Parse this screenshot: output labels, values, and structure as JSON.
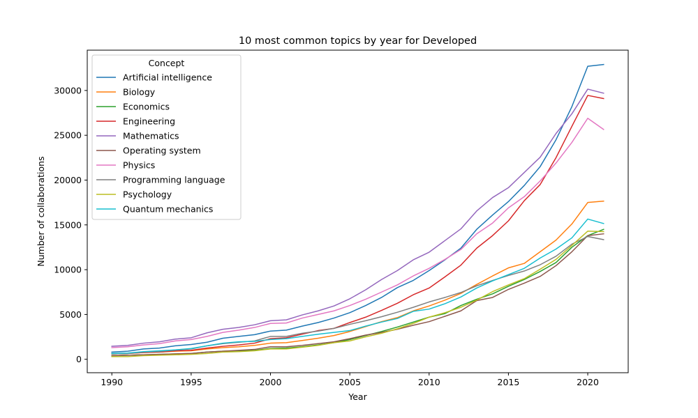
{
  "chart_data": {
    "type": "line",
    "title": "10 most common topics by year for Developed",
    "xlabel": "Year",
    "ylabel": "Number of collaborations",
    "xlim": [
      1988.45,
      2022.55
    ],
    "ylim": [
      -1500,
      34500
    ],
    "xticks": [
      1990,
      1995,
      2000,
      2005,
      2010,
      2015,
      2020
    ],
    "yticks": [
      0,
      5000,
      10000,
      15000,
      20000,
      25000,
      30000
    ],
    "grid": false,
    "legend": {
      "title": "Concept",
      "placement": "top-left"
    },
    "x": [
      1990,
      1991,
      1992,
      1993,
      1994,
      1995,
      1996,
      1997,
      1998,
      1999,
      2000,
      2001,
      2002,
      2003,
      2004,
      2005,
      2006,
      2007,
      2008,
      2009,
      2010,
      2011,
      2012,
      2013,
      2014,
      2015,
      2016,
      2017,
      2018,
      2019,
      2020,
      2021
    ],
    "series": [
      {
        "name": "Artificial intelligence",
        "color": "#1f77b4",
        "values": [
          800,
          900,
          1150,
          1250,
          1500,
          1650,
          1900,
          2350,
          2550,
          2750,
          3150,
          3250,
          3700,
          4100,
          4600,
          5200,
          6000,
          6900,
          8000,
          8800,
          9900,
          11100,
          12400,
          14500,
          16100,
          17600,
          19400,
          21500,
          24500,
          28200,
          32700,
          32900
        ]
      },
      {
        "name": "Biology",
        "color": "#ff7f0e",
        "values": [
          600,
          650,
          750,
          800,
          900,
          950,
          1150,
          1300,
          1400,
          1550,
          1800,
          1850,
          2100,
          2350,
          2650,
          3100,
          3650,
          4200,
          4650,
          5400,
          5950,
          6600,
          7350,
          8350,
          9300,
          10200,
          10700,
          12000,
          13300,
          15100,
          17500,
          17650
        ]
      },
      {
        "name": "Economics",
        "color": "#2ca02c",
        "values": [
          400,
          450,
          500,
          550,
          600,
          650,
          800,
          900,
          950,
          1000,
          1200,
          1250,
          1400,
          1600,
          1850,
          2200,
          2650,
          3100,
          3600,
          4150,
          4700,
          5100,
          6000,
          6700,
          7300,
          8150,
          8900,
          9800,
          10800,
          12500,
          13800,
          14500
        ]
      },
      {
        "name": "Engineering",
        "color": "#d62728",
        "values": [
          600,
          650,
          750,
          800,
          950,
          1000,
          1250,
          1450,
          1600,
          1800,
          2300,
          2400,
          2800,
          3200,
          3450,
          4100,
          4700,
          5450,
          6250,
          7200,
          7950,
          9200,
          10500,
          12400,
          13800,
          15450,
          17700,
          19500,
          22500,
          26000,
          29450,
          29100
        ]
      },
      {
        "name": "Mathematics",
        "color": "#9467bd",
        "values": [
          1450,
          1550,
          1800,
          1950,
          2250,
          2400,
          2950,
          3350,
          3550,
          3850,
          4300,
          4400,
          4950,
          5400,
          5950,
          6750,
          7750,
          8900,
          9900,
          11100,
          11950,
          13250,
          14550,
          16550,
          18050,
          19150,
          20850,
          22550,
          25200,
          27400,
          30150,
          29700
        ]
      },
      {
        "name": "Operating system",
        "color": "#8c564b",
        "values": [
          400,
          450,
          500,
          550,
          600,
          650,
          800,
          900,
          1000,
          1100,
          1400,
          1400,
          1550,
          1750,
          1950,
          2300,
          2700,
          3000,
          3350,
          3800,
          4200,
          4800,
          5400,
          6550,
          6900,
          7800,
          8500,
          9250,
          10450,
          12000,
          13800,
          14000
        ]
      },
      {
        "name": "Physics",
        "color": "#e377c2",
        "values": [
          1300,
          1400,
          1600,
          1750,
          2050,
          2200,
          2550,
          3000,
          3250,
          3550,
          4000,
          4050,
          4600,
          5000,
          5400,
          6000,
          6700,
          7500,
          8300,
          9300,
          10150,
          11150,
          12250,
          14000,
          15200,
          16900,
          18150,
          19900,
          21900,
          24200,
          26900,
          25650
        ]
      },
      {
        "name": "Programming language",
        "color": "#7f7f7f",
        "values": [
          600,
          650,
          800,
          850,
          1050,
          1150,
          1500,
          1750,
          1900,
          2050,
          2550,
          2550,
          2900,
          3150,
          3450,
          3900,
          4300,
          4750,
          5250,
          5800,
          6400,
          6900,
          7450,
          8200,
          8800,
          9350,
          9850,
          10550,
          11500,
          12850,
          13700,
          13350
        ]
      },
      {
        "name": "Psychology",
        "color": "#bcbd22",
        "values": [
          300,
          300,
          400,
          450,
          500,
          550,
          650,
          800,
          850,
          950,
          1150,
          1150,
          1350,
          1550,
          1850,
          2050,
          2500,
          2900,
          3400,
          4000,
          4700,
          5200,
          5800,
          6600,
          7550,
          8300,
          9000,
          10050,
          11150,
          12700,
          14300,
          14250
        ]
      },
      {
        "name": "Quantum mechanics",
        "color": "#17becf",
        "values": [
          650,
          700,
          850,
          950,
          1050,
          1200,
          1500,
          1800,
          1950,
          2000,
          2200,
          2300,
          2550,
          2800,
          3000,
          3200,
          3700,
          4150,
          4550,
          5350,
          5600,
          6200,
          6950,
          7950,
          8750,
          9450,
          10150,
          11300,
          12300,
          13550,
          15650,
          15150
        ]
      }
    ]
  }
}
